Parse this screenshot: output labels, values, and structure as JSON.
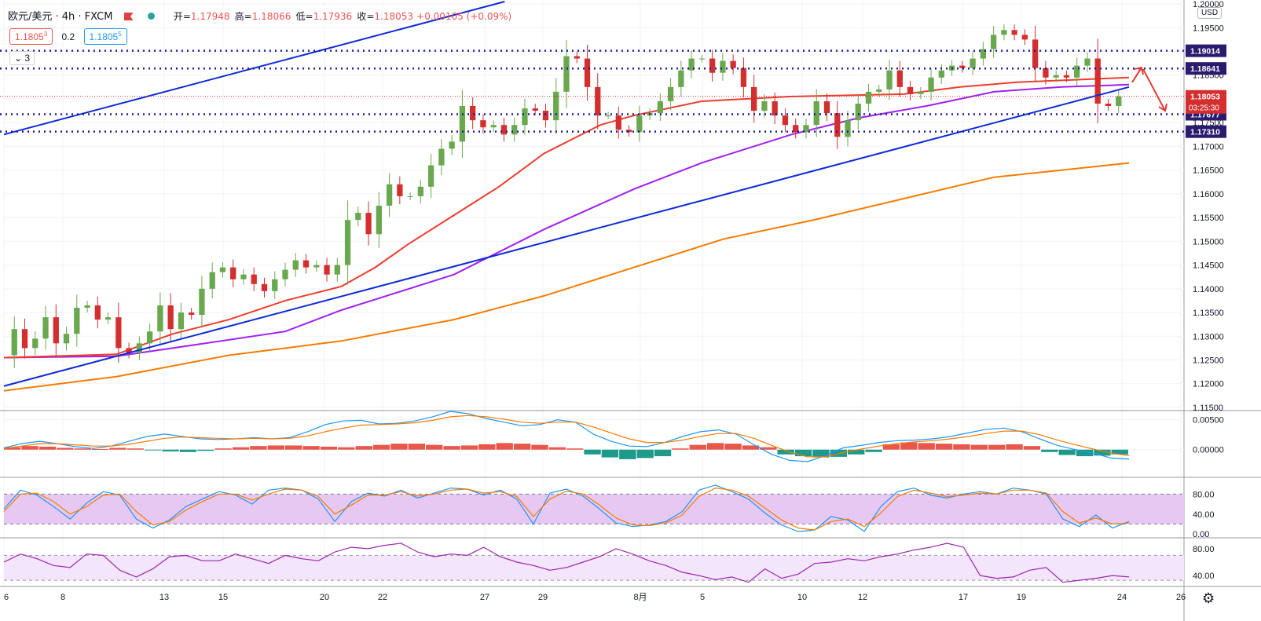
{
  "header": {
    "symbol": "欧元/美元 · 4h · FXCM",
    "open_label": "开=",
    "open": "1.17948",
    "high_label": "高=",
    "high": "1.18066",
    "low_label": "低=",
    "low": "1.17936",
    "close_label": "收=",
    "close": "1.18053",
    "change": "+0.00105 (+0.09%)",
    "sell_price": "1.1805",
    "sell_sup": "3",
    "spread": "0.2",
    "buy_price": "1.1805",
    "buy_sup": "5",
    "collapse_count": "3",
    "currency": "USD"
  },
  "colors": {
    "up": "#6aa84f",
    "down": "#d32f2f",
    "trendline": "#0d2bd6",
    "level": "#1a1aa0",
    "ma_red": "#ef3b2c",
    "ma_purple": "#a020f0",
    "ma_orange": "#f57c00",
    "arrow": "#e53935",
    "macd_up": "#e8574a",
    "macd_down": "#1d9a8a",
    "macd_line": "#2196f3",
    "signal_line": "#f57c00",
    "stoch_fill": "#e6c8f3",
    "rsi_line": "#9c27b0",
    "rsi_fill": "#f3e5fb"
  },
  "chart_data": {
    "type": "line",
    "instrument": "欧元/美元",
    "timeframe": "4h",
    "x_tick_labels": [
      "6",
      "8",
      "13",
      "15",
      "20",
      "22",
      "27",
      "29",
      "8月",
      "5",
      "10",
      "12",
      "17",
      "19",
      "24",
      "26"
    ],
    "price_axis": {
      "ticks": [
        "1.20000",
        "1.19500",
        "1.19000",
        "1.18500",
        "1.18000",
        "1.17500",
        "1.17000",
        "1.16500",
        "1.16000",
        "1.15500",
        "1.15000",
        "1.14500",
        "1.14000",
        "1.13500",
        "1.13000",
        "1.12500",
        "1.12000",
        "1.11500"
      ],
      "ylim": [
        1.1145,
        1.2005
      ]
    },
    "horizontal_levels": [
      "1.19014",
      "1.18641",
      "1.17677",
      "1.17310"
    ],
    "current_price": "1.18053",
    "countdown": "03:25:30",
    "price_path": [
      1.126,
      1.1315,
      1.1275,
      1.1295,
      1.134,
      1.1285,
      1.1305,
      1.136,
      1.1365,
      1.1335,
      1.134,
      1.1275,
      1.1265,
      1.1285,
      1.131,
      1.1365,
      1.1315,
      1.135,
      1.1345,
      1.14,
      1.1435,
      1.1445,
      1.142,
      1.143,
      1.141,
      1.1395,
      1.142,
      1.144,
      1.146,
      1.1445,
      1.145,
      1.143,
      1.145,
      1.1545,
      1.156,
      1.1515,
      1.1575,
      1.162,
      1.1595,
      1.1595,
      1.1615,
      1.166,
      1.1695,
      1.171,
      1.1785,
      1.1755,
      1.174,
      1.1745,
      1.1725,
      1.1745,
      1.178,
      1.1775,
      1.1755,
      1.1815,
      1.189,
      1.1885,
      1.1825,
      1.1765,
      1.1765,
      1.1735,
      1.173,
      1.1765,
      1.177,
      1.1795,
      1.1825,
      1.186,
      1.1885,
      1.1885,
      1.1855,
      1.188,
      1.1865,
      1.1825,
      1.1775,
      1.1795,
      1.1765,
      1.1745,
      1.173,
      1.1745,
      1.1795,
      1.177,
      1.172,
      1.1755,
      1.179,
      1.1815,
      1.182,
      1.186,
      1.1825,
      1.181,
      1.1815,
      1.1845,
      1.186,
      1.187,
      1.1865,
      1.1885,
      1.1905,
      1.1935,
      1.1945,
      1.1935,
      1.1925,
      1.1865,
      1.1845,
      1.185,
      1.1845,
      1.187,
      1.1885,
      1.179,
      1.1785,
      1.1805
    ],
    "ma_red": [
      [
        0,
        1.1255
      ],
      [
        0.1,
        1.1262
      ],
      [
        0.15,
        1.1305
      ],
      [
        0.2,
        1.1335
      ],
      [
        0.25,
        1.1375
      ],
      [
        0.3,
        1.1405
      ],
      [
        0.33,
        1.1445
      ],
      [
        0.36,
        1.1495
      ],
      [
        0.4,
        1.1555
      ],
      [
        0.44,
        1.1615
      ],
      [
        0.48,
        1.1685
      ],
      [
        0.53,
        1.1745
      ],
      [
        0.56,
        1.1765
      ],
      [
        0.62,
        1.1795
      ],
      [
        0.7,
        1.1805
      ],
      [
        0.8,
        1.181
      ],
      [
        0.85,
        1.1825
      ],
      [
        0.9,
        1.1835
      ],
      [
        0.95,
        1.184
      ],
      [
        1.0,
        1.1845
      ]
    ],
    "ma_purple": [
      [
        0,
        1.1255
      ],
      [
        0.1,
        1.1258
      ],
      [
        0.15,
        1.1275
      ],
      [
        0.25,
        1.131
      ],
      [
        0.3,
        1.1355
      ],
      [
        0.4,
        1.143
      ],
      [
        0.48,
        1.1525
      ],
      [
        0.56,
        1.161
      ],
      [
        0.62,
        1.1665
      ],
      [
        0.7,
        1.1725
      ],
      [
        0.76,
        1.176
      ],
      [
        0.82,
        1.1785
      ],
      [
        0.88,
        1.1815
      ],
      [
        0.94,
        1.1825
      ],
      [
        1.0,
        1.183
      ]
    ],
    "ma_orange": [
      [
        0,
        1.1185
      ],
      [
        0.1,
        1.1215
      ],
      [
        0.2,
        1.126
      ],
      [
        0.3,
        1.129
      ],
      [
        0.4,
        1.1335
      ],
      [
        0.48,
        1.1385
      ],
      [
        0.56,
        1.1445
      ],
      [
        0.64,
        1.1505
      ],
      [
        0.72,
        1.1545
      ],
      [
        0.8,
        1.159
      ],
      [
        0.88,
        1.1635
      ],
      [
        1.0,
        1.1665
      ]
    ],
    "trendlines": [
      {
        "points": [
          [
            0,
            1.1725
          ],
          [
            0.445,
            1.2005
          ]
        ]
      },
      {
        "points": [
          [
            0,
            1.1195
          ],
          [
            1.0,
            1.1825
          ]
        ]
      }
    ],
    "macd": {
      "ticks": [
        "0.00500",
        "0.00000"
      ],
      "ylim": [
        -0.0045,
        0.0064
      ],
      "histogram": [
        0.0004,
        0.0006,
        0.0005,
        0.0003,
        0.0002,
        0.0001,
        0.0003,
        0.0002,
        -0.0001,
        -0.0003,
        -0.0004,
        -0.0002,
        0.0002,
        0.0004,
        0.0006,
        0.0007,
        0.0007,
        0.0006,
        0.0005,
        0.0004,
        0.0006,
        0.0008,
        0.001,
        0.001,
        0.0008,
        0.0006,
        0.0007,
        0.0009,
        0.0011,
        0.001,
        0.0008,
        0.0004,
        0.0002,
        -0.0008,
        -0.0013,
        -0.0016,
        -0.0014,
        -0.0011,
        0.0002,
        0.0008,
        0.0011,
        0.001,
        0.0007,
        0.0004,
        -0.0008,
        -0.0011,
        -0.0013,
        -0.0012,
        -0.0008,
        -0.0004,
        0.0009,
        0.0012,
        0.0011,
        0.001,
        0.0009,
        0.0008,
        0.0008,
        0.0009,
        0.0006,
        -0.0004,
        -0.0009,
        -0.0011,
        -0.001,
        -0.0008
      ],
      "macd_line": [
        0.0003,
        0.001,
        0.0014,
        0.001,
        0.0005,
        0.0002,
        0.0006,
        0.0014,
        0.0022,
        0.0026,
        0.0022,
        0.0018,
        0.0017,
        0.0018,
        0.002,
        0.0018,
        0.002,
        0.003,
        0.0042,
        0.0048,
        0.0049,
        0.0043,
        0.0044,
        0.0048,
        0.0055,
        0.0064,
        0.006,
        0.0052,
        0.0046,
        0.004,
        0.0042,
        0.005,
        0.0046,
        0.0026,
        0.0014,
        0.0006,
        0.0005,
        0.0012,
        0.0022,
        0.003,
        0.0033,
        0.0026,
        0.0008,
        -0.0008,
        -0.0018,
        -0.002,
        -0.001,
        0.0003,
        0.0007,
        0.0012,
        0.0015,
        0.0016,
        0.0018,
        0.0022,
        0.0028,
        0.0034,
        0.0036,
        0.003,
        0.0018,
        0.0007,
        0.0,
        -0.0006,
        -0.0014,
        -0.0016
      ],
      "signal_line": [
        0.0002,
        0.0006,
        0.001,
        0.001,
        0.0008,
        0.0006,
        0.0006,
        0.0009,
        0.0014,
        0.0019,
        0.0021,
        0.002,
        0.0019,
        0.0018,
        0.0019,
        0.0018,
        0.0019,
        0.0023,
        0.003,
        0.0036,
        0.0041,
        0.0042,
        0.0043,
        0.0045,
        0.0049,
        0.0055,
        0.0057,
        0.0055,
        0.0051,
        0.0046,
        0.0044,
        0.0046,
        0.0046,
        0.0038,
        0.0028,
        0.0018,
        0.0012,
        0.0012,
        0.0016,
        0.0022,
        0.0027,
        0.0027,
        0.0019,
        0.0007,
        -0.0004,
        -0.0012,
        -0.0012,
        -0.0005,
        0.0001,
        0.0006,
        0.001,
        0.0013,
        0.0015,
        0.0018,
        0.0022,
        0.0027,
        0.0031,
        0.0031,
        0.0025,
        0.0016,
        0.0008,
        0.0001,
        -0.0006,
        -0.001
      ]
    },
    "stochastic": {
      "ticks": [
        "80.00",
        "40.00",
        "0.00"
      ],
      "ylim": [
        -6,
        112
      ],
      "band": [
        20,
        80
      ],
      "k": [
        50,
        88,
        78,
        55,
        30,
        62,
        85,
        78,
        30,
        12,
        28,
        55,
        70,
        85,
        78,
        60,
        88,
        92,
        88,
        70,
        25,
        65,
        82,
        76,
        88,
        72,
        82,
        92,
        90,
        78,
        88,
        70,
        20,
        82,
        90,
        76,
        50,
        22,
        15,
        18,
        25,
        45,
        88,
        98,
        85,
        70,
        42,
        18,
        5,
        8,
        35,
        28,
        5,
        55,
        85,
        92,
        78,
        72,
        80,
        85,
        80,
        92,
        88,
        80,
        30,
        15,
        38,
        12,
        25
      ],
      "d": [
        45,
        80,
        82,
        65,
        40,
        55,
        78,
        80,
        45,
        18,
        25,
        48,
        65,
        80,
        80,
        68,
        80,
        90,
        88,
        75,
        40,
        58,
        78,
        78,
        85,
        76,
        80,
        88,
        90,
        82,
        85,
        75,
        35,
        70,
        86,
        80,
        58,
        32,
        18,
        17,
        22,
        38,
        75,
        92,
        88,
        76,
        52,
        28,
        12,
        8,
        25,
        30,
        15,
        42,
        75,
        88,
        82,
        75,
        78,
        82,
        80,
        88,
        88,
        82,
        45,
        22,
        32,
        20,
        22
      ]
    },
    "rsi": {
      "ticks": [
        "80.00",
        "40.00"
      ],
      "ylim": [
        25,
        95
      ],
      "band": [
        33,
        70
      ],
      "values": [
        60,
        72,
        65,
        55,
        52,
        72,
        70,
        48,
        38,
        50,
        68,
        70,
        62,
        62,
        72,
        65,
        58,
        70,
        65,
        62,
        75,
        82,
        80,
        85,
        88,
        75,
        68,
        72,
        70,
        82,
        68,
        60,
        55,
        48,
        52,
        60,
        68,
        80,
        72,
        62,
        55,
        45,
        40,
        34,
        38,
        30,
        50,
        36,
        42,
        58,
        60,
        65,
        62,
        68,
        72,
        78,
        82,
        88,
        82,
        40,
        36,
        38,
        48,
        52,
        30,
        33,
        36,
        40,
        38
      ]
    }
  }
}
